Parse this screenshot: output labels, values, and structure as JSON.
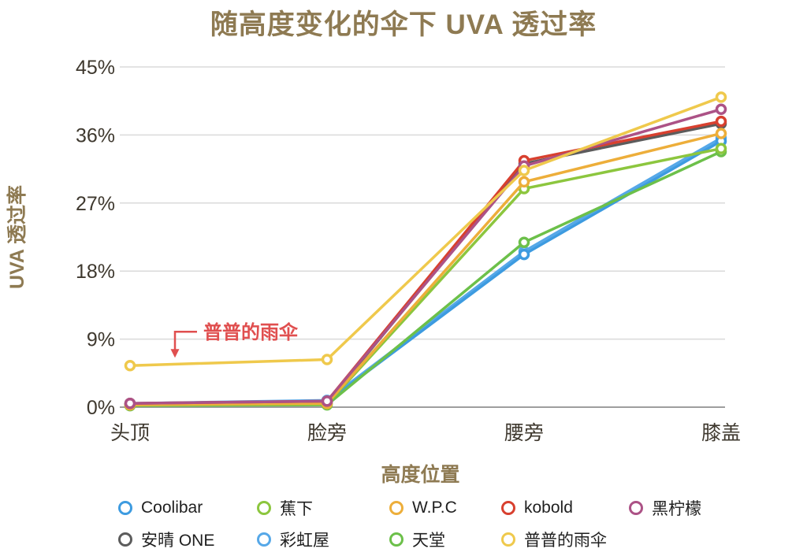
{
  "chart_data": {
    "type": "line",
    "title": "随高度变化的伞下 UVA 透过率",
    "xlabel": "高度位置",
    "ylabel": "UVA 透过率",
    "categories": [
      "头顶",
      "脸旁",
      "腰旁",
      "膝盖"
    ],
    "ylim": [
      0,
      45
    ],
    "yticks": [
      0,
      9,
      18,
      27,
      36,
      45
    ],
    "ytick_labels": [
      "0%",
      "9%",
      "18%",
      "27%",
      "36%",
      "45%"
    ],
    "grid": true,
    "legend_position": "bottom",
    "series": [
      {
        "name": "Coolibar",
        "color": "#3D9BE0",
        "values": [
          0.4,
          0.7,
          20.2,
          35.2
        ]
      },
      {
        "name": "蕉下",
        "color": "#8CC63E",
        "values": [
          0.3,
          0.4,
          28.9,
          34.2
        ]
      },
      {
        "name": "W.P.C",
        "color": "#EDAE3A",
        "values": [
          0.3,
          0.5,
          29.8,
          36.2
        ]
      },
      {
        "name": "kobold",
        "color": "#D8402F",
        "values": [
          0.5,
          0.8,
          32.6,
          37.8
        ]
      },
      {
        "name": "黑柠檬",
        "color": "#AC5286",
        "values": [
          0.5,
          0.8,
          31.9,
          39.4
        ]
      },
      {
        "name": "安晴 ONE",
        "color": "#5C5C5C",
        "values": [
          0.4,
          0.6,
          32.2,
          37.5
        ]
      },
      {
        "name": "彩虹屋",
        "color": "#56A8E8",
        "values": [
          0.5,
          0.9,
          20.6,
          35.6
        ]
      },
      {
        "name": "天堂",
        "color": "#6CC04A",
        "values": [
          0.2,
          0.3,
          21.8,
          33.8
        ]
      },
      {
        "name": "普普的雨伞",
        "color": "#EFC94C",
        "values": [
          5.5,
          6.3,
          31.3,
          41.0
        ]
      }
    ],
    "draw_order": [
      5,
      6,
      0,
      7,
      1,
      2,
      3,
      4,
      8
    ],
    "annotation": {
      "text": "普普的雨伞",
      "color": "#E04F4F",
      "target_series": "普普的雨伞"
    }
  },
  "colors": {
    "title": "#8E7A52",
    "axis_label": "#8E7A52",
    "tick": "#3E382E",
    "grid": "#DADADA",
    "axis_line": "#9E9E9E",
    "legend_text": "#1F1F1F"
  }
}
